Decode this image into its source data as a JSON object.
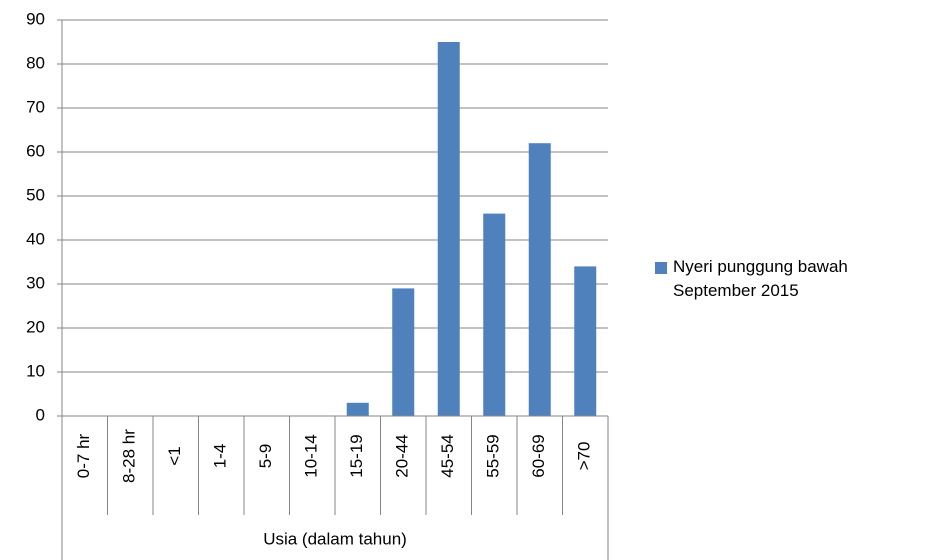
{
  "chart_data": {
    "type": "bar",
    "categories": [
      "0-7 hr",
      "8-28 hr",
      "<1",
      "1-4",
      "5-9",
      "10-14",
      "15-19",
      "20-44",
      "45-54",
      "55-59",
      "60-69",
      ">70"
    ],
    "series": [
      {
        "name": "Nyeri punggung bawah September 2015",
        "color": "#4f81bd",
        "values": [
          0,
          0,
          0,
          0,
          0,
          0,
          3,
          29,
          85,
          46,
          62,
          34
        ]
      }
    ],
    "x_label": "Usia (dalam tahun)",
    "ylim": [
      0,
      90
    ],
    "yticks": [
      0,
      10,
      20,
      30,
      40,
      50,
      60,
      70,
      80,
      90
    ],
    "grid": true,
    "legend": "right"
  }
}
